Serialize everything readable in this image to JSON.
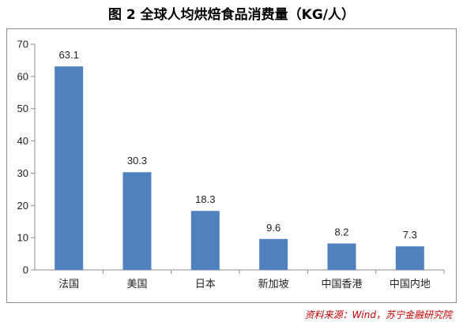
{
  "title": "图 2  全球人均烘焙食品消费量（KG/人）",
  "source": "资料来源：Wind，苏宁金融研究院",
  "colors": {
    "bar": "#4f81bd",
    "axis": "#8c8c8c",
    "grid": "#d9d9d9"
  },
  "chart_data": {
    "type": "bar",
    "title": "图 2  全球人均烘焙食品消费量（KG/人）",
    "xlabel": "",
    "ylabel": "",
    "categories": [
      "法国",
      "美国",
      "日本",
      "新加坡",
      "中国香港",
      "中国内地"
    ],
    "values": [
      63.1,
      30.3,
      18.3,
      9.6,
      8.2,
      7.3
    ],
    "data_labels": [
      "63.1",
      "30.3",
      "18.3",
      "9.6",
      "8.2",
      "7.3"
    ],
    "ylim": [
      0,
      70
    ],
    "yticks": [
      0,
      10,
      20,
      30,
      40,
      50,
      60,
      70
    ],
    "grid": false,
    "legend": "none"
  }
}
